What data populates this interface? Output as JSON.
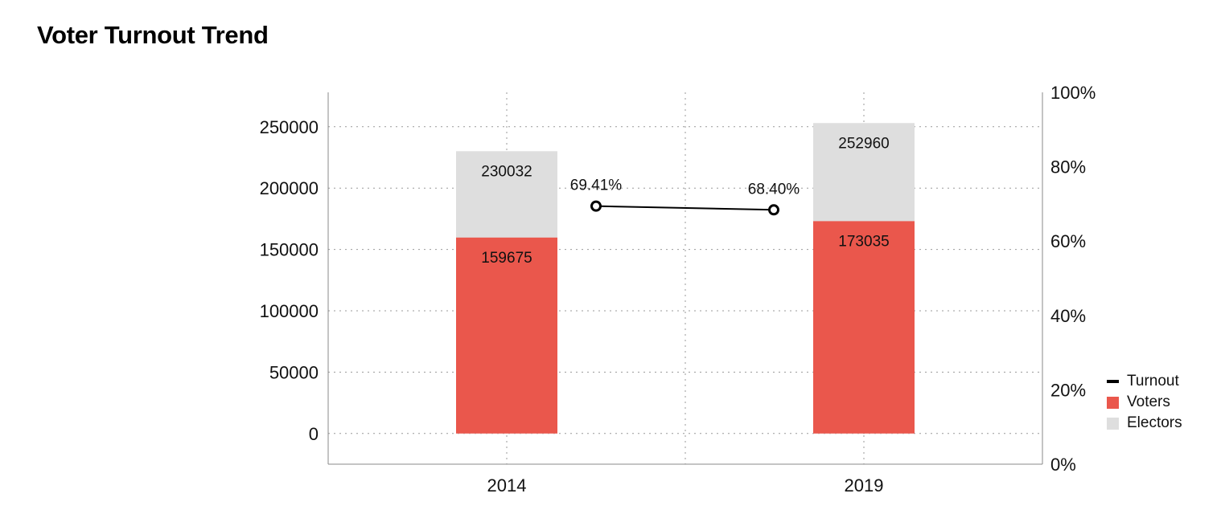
{
  "title": "Voter Turnout Trend",
  "chart_data": {
    "type": "bar",
    "title": "Voter Turnout Trend",
    "categories": [
      "2014",
      "2019"
    ],
    "series": [
      {
        "name": "Electors",
        "values": [
          230032,
          252960
        ],
        "color": "#dedede",
        "kind": "bar"
      },
      {
        "name": "Voters",
        "values": [
          159675,
          173035
        ],
        "color": "#ea574c",
        "kind": "bar"
      },
      {
        "name": "Turnout",
        "values": [
          69.41,
          68.4
        ],
        "value_labels": [
          "69.41%",
          "68.40%"
        ],
        "color": "#000000",
        "kind": "line",
        "axis": "right"
      }
    ],
    "ylim_left": [
      -25000,
      278000
    ],
    "yticks_left": [
      0,
      50000,
      100000,
      150000,
      200000,
      250000
    ],
    "yticks_left_labels": [
      "0",
      "50000",
      "100000",
      "150000",
      "200000",
      "250000"
    ],
    "ylim_right": [
      0,
      100
    ],
    "yticks_right": [
      0,
      20,
      40,
      60,
      80,
      100
    ],
    "yticks_right_labels": [
      "0%",
      "20%",
      "40%",
      "60%",
      "80%",
      "100%"
    ],
    "grid": true,
    "legend_position": "bottom-right",
    "legend": [
      "Turnout",
      "Voters",
      "Electors"
    ]
  }
}
